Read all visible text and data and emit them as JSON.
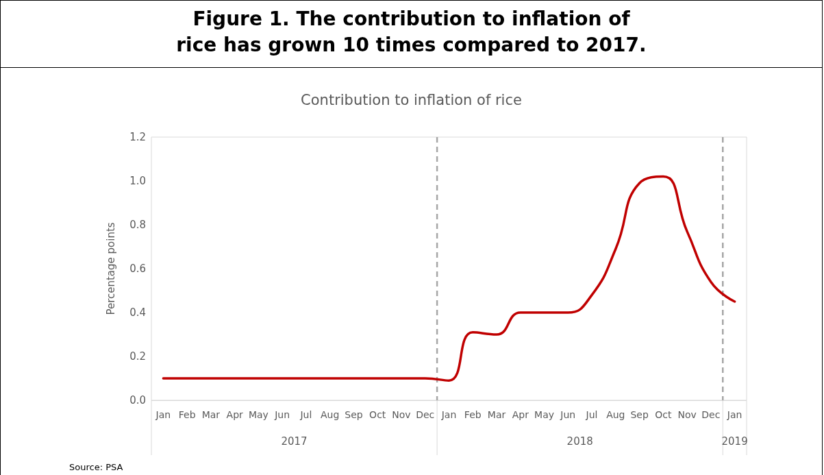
{
  "chart_data": {
    "type": "line",
    "title": "Figure 1. The contribution to inflation of\nrice has grown 10 times compared to 2017.",
    "subtitle": "Contribution to inflation of rice",
    "ylabel": "Percentage points",
    "categories": [
      "Jan",
      "Feb",
      "Mar",
      "Apr",
      "May",
      "Jun",
      "Jul",
      "Aug",
      "Sep",
      "Oct",
      "Nov",
      "Dec",
      "Jan",
      "Feb",
      "Mar",
      "Apr",
      "May",
      "Jun",
      "Jul",
      "Aug",
      "Sep",
      "Oct",
      "Nov",
      "Dec",
      "Jan"
    ],
    "series": [
      {
        "color": "#c00000",
        "values": [
          0.1,
          0.1,
          0.1,
          0.1,
          0.1,
          0.1,
          0.1,
          0.1,
          0.1,
          0.1,
          0.1,
          0.1,
          0.09,
          0.31,
          0.3,
          0.4,
          0.4,
          0.4,
          0.48,
          0.69,
          0.99,
          1.02,
          0.77,
          0.54,
          0.45
        ]
      }
    ],
    "ylim": [
      0,
      1.2
    ],
    "yticks": [
      {
        "value": 0,
        "label": "0.0"
      },
      {
        "value": 0.2,
        "label": "0.2"
      },
      {
        "value": 0.4,
        "label": "0.4"
      },
      {
        "value": 0.6,
        "label": "0.6"
      },
      {
        "value": 0.8,
        "label": "0.8"
      },
      {
        "value": 1,
        "label": "1.0"
      },
      {
        "value": 1.2,
        "label": "1.2"
      }
    ],
    "annotations": [
      "2017",
      "2018",
      "2019",
      "Source: PSA"
    ],
    "grid": false,
    "marker": "none",
    "line_style": "solid"
  }
}
